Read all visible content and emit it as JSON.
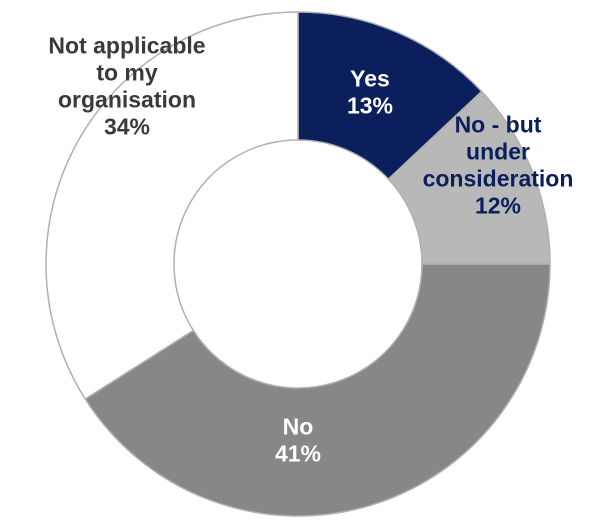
{
  "chart_data": {
    "type": "pie",
    "donut": true,
    "slices": [
      {
        "category": "Yes",
        "value": 13,
        "value_label": "13%",
        "label_lines": [
          "Yes",
          "13%"
        ],
        "color": "#0a1f5c",
        "label_color": "#ffffff"
      },
      {
        "category": "No - but under consideration",
        "value": 12,
        "value_label": "12%",
        "label_lines": [
          "No - but",
          "under",
          "consideration",
          "12%"
        ],
        "color": "#b8b8b8",
        "label_color": "#0a1f5c"
      },
      {
        "category": "No",
        "value": 41,
        "value_label": "41%",
        "label_lines": [
          "No",
          "41%"
        ],
        "color": "#878787",
        "label_color": "#ffffff"
      },
      {
        "category": "Not applicable to my organisation",
        "value": 34,
        "value_label": "34%",
        "label_lines": [
          "Not applicable",
          "to my",
          "organisation",
          "34%"
        ],
        "color": "#ffffff",
        "label_color": "#3a3a3a"
      }
    ]
  }
}
